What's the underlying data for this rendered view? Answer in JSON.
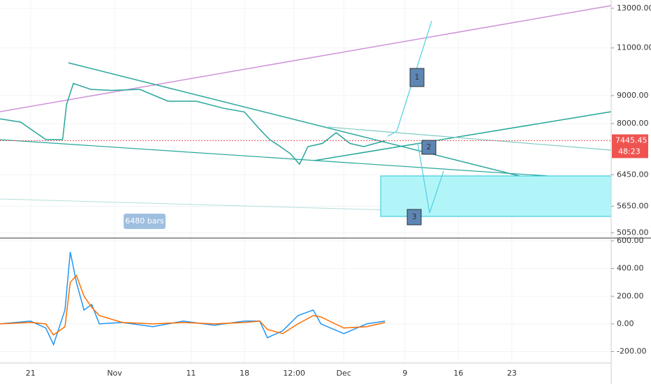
{
  "chart_data": [
    {
      "type": "line",
      "log": true,
      "grid": true,
      "x": [
        -4,
        -1.3,
        2,
        4.2,
        4.7,
        5.6,
        7.9,
        10.6,
        14.3,
        18,
        21.7,
        25.3,
        28,
        30,
        31.3,
        32.7,
        34,
        35.2,
        36.3,
        38.2,
        40,
        41.8,
        43.6,
        46.4
      ],
      "series": [
        {
          "color": "#26a69a",
          "values": [
            8160,
            8050,
            7480,
            7480,
            8660,
            9470,
            9240,
            9200,
            9240,
            8790,
            8790,
            8530,
            8400,
            7810,
            7480,
            7260,
            7050,
            6740,
            7260,
            7360,
            7700,
            7360,
            7260,
            7445
          ]
        }
      ],
      "xlim": [
        -4,
        76
      ],
      "xticks": [
        {
          "value": 0,
          "label": "21"
        },
        {
          "value": 11,
          "label": "Nov"
        },
        {
          "value": 21,
          "label": "11"
        },
        {
          "value": 28,
          "label": "18"
        },
        {
          "value": 34.5,
          "label": "12:00"
        },
        {
          "value": 41,
          "label": "Dec"
        },
        {
          "value": 49,
          "label": "9"
        },
        {
          "value": 56,
          "label": "16"
        },
        {
          "value": 63,
          "label": "23"
        }
      ],
      "ylim": [
        4940,
        13460
      ],
      "yticks": [
        {
          "value": 5050,
          "label": "5050.00"
        },
        {
          "value": 5650,
          "label": "5650.00"
        },
        {
          "value": 6450,
          "label": "6450.00"
        },
        {
          "value": 8000,
          "label": "8000.00"
        },
        {
          "value": 9000,
          "label": "9000.00"
        },
        {
          "value": 11000,
          "label": "11000.00"
        },
        {
          "value": 13000,
          "label": "13000.00"
        }
      ],
      "last_price": {
        "value": 7445.45,
        "label": "7445.45"
      },
      "countdown": "48:23",
      "bars_label": "6480 bars",
      "annotations": [
        "1",
        "2",
        "3"
      ]
    },
    {
      "type": "line",
      "grid": true,
      "x": [
        -4,
        0,
        2,
        3,
        4.5,
        5.2,
        6,
        7,
        8,
        9,
        12,
        16,
        20,
        24,
        28,
        30,
        31,
        33,
        35,
        37,
        38,
        41,
        44,
        46.4
      ],
      "series": [
        {
          "color": "#2196f3",
          "values": [
            0,
            20,
            -30,
            -150,
            100,
            520,
            300,
            100,
            140,
            0,
            10,
            -20,
            20,
            -10,
            20,
            20,
            -100,
            -50,
            60,
            100,
            0,
            -70,
            0,
            20
          ]
        },
        {
          "color": "#ff6d00",
          "values": [
            0,
            10,
            0,
            -80,
            -20,
            300,
            350,
            200,
            120,
            60,
            10,
            0,
            10,
            0,
            10,
            20,
            -40,
            -70,
            0,
            60,
            50,
            -30,
            -20,
            10
          ]
        }
      ],
      "xlim": [
        -4,
        76
      ],
      "ylim": [
        -283,
        620
      ],
      "yticks": [
        {
          "value": -200,
          "label": "-200.00"
        },
        {
          "value": 0,
          "label": "0.00"
        },
        {
          "value": 200,
          "label": "200.00"
        },
        {
          "value": 400,
          "label": "400.00"
        },
        {
          "value": 600,
          "label": "600.00"
        }
      ]
    }
  ]
}
